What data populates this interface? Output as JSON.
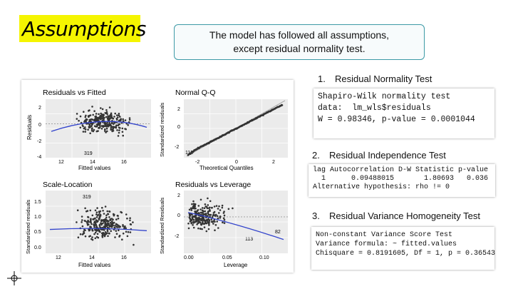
{
  "slide": {
    "title": "Assumptions",
    "callout_line1": "The model has followed all assumptions,",
    "callout_line2": "except residual normality test."
  },
  "plots": {
    "residuals_vs_fitted": {
      "title": "Residuals vs Fitted",
      "xlabel": "Fitted values",
      "ylabel": "Residuals",
      "xticks": [
        "12",
        "14",
        "16"
      ],
      "yticks": [
        "2",
        "0",
        "-2",
        "-4"
      ],
      "point_labels": [
        "319"
      ]
    },
    "normal_qq": {
      "title": "Normal Q-Q",
      "xlabel": "Theoretical Quantiles",
      "ylabel": "Standardized residuals",
      "xticks": [
        "-2",
        "0",
        "2"
      ],
      "yticks": [
        "2",
        "0",
        "-2"
      ],
      "point_labels": [
        "113"
      ]
    },
    "scale_location": {
      "title": "Scale-Location",
      "xlabel": "Fitted values",
      "ylabel": "Standardized residuals",
      "xticks": [
        "12",
        "14",
        "16"
      ],
      "yticks": [
        "1.5",
        "1.0",
        "0.5",
        "0.0"
      ],
      "point_labels": [
        "319"
      ]
    },
    "residuals_vs_leverage": {
      "title": "Residuals vs Leverage",
      "xlabel": "Leverage",
      "ylabel": "Standardized Residuals",
      "xticks": [
        "0.00",
        "0.05",
        "0.10"
      ],
      "yticks": [
        "2",
        "0",
        "-2"
      ],
      "point_labels": [
        "113",
        "82"
      ]
    }
  },
  "sections": [
    {
      "number": "1.",
      "heading": "Residual Normality Test",
      "output_lines": [
        "Shapiro-Wilk normality test",
        "",
        "data:  lm_wls$residuals",
        "W = 0.98346, p-value = 0.0001044"
      ]
    },
    {
      "number": "2.",
      "heading": "Residual Independence Test",
      "output_lines": [
        "lag Autocorrelation D-W Statistic p-value",
        "  1      0.09488015       1.80693   0.036",
        "Alternative hypothesis: rho != 0"
      ]
    },
    {
      "number": "3.",
      "heading": "Residual Variance Homogeneity Test",
      "output_lines": [
        "Non-constant Variance Score Test",
        "Variance formula: ~ fitted.values",
        "Chisquare = 0.8191605, Df = 1, p = 0.36543"
      ]
    }
  ],
  "colors": {
    "title_bg": "#f5f500",
    "callout_border": "#3d9aa6",
    "plot_bg": "#ebebeb",
    "points": "#333333",
    "smooth_line": "#3344cc"
  }
}
